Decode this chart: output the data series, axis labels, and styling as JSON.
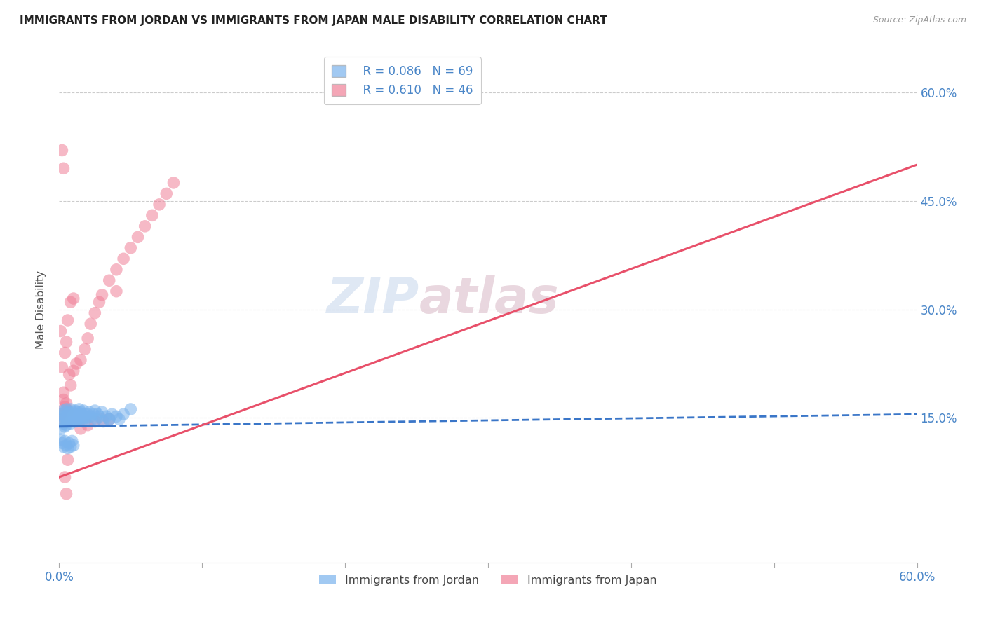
{
  "title": "IMMIGRANTS FROM JORDAN VS IMMIGRANTS FROM JAPAN MALE DISABILITY CORRELATION CHART",
  "source": "Source: ZipAtlas.com",
  "ylabel": "Male Disability",
  "legend_jordan_r": "R = 0.086",
  "legend_jordan_n": "N = 69",
  "legend_japan_r": "R = 0.610",
  "legend_japan_n": "N = 46",
  "color_jordan": "#7ab3ed",
  "color_japan": "#f08098",
  "color_trendline_jordan": "#3a76c8",
  "color_trendline_japan": "#e8506a",
  "watermark_zip": "ZIP",
  "watermark_atlas": "atlas",
  "jordan_scatter_x": [
    0.001,
    0.002,
    0.002,
    0.003,
    0.003,
    0.003,
    0.004,
    0.004,
    0.004,
    0.005,
    0.005,
    0.005,
    0.006,
    0.006,
    0.007,
    0.007,
    0.008,
    0.008,
    0.008,
    0.009,
    0.009,
    0.01,
    0.01,
    0.011,
    0.011,
    0.012,
    0.012,
    0.013,
    0.013,
    0.014,
    0.014,
    0.015,
    0.015,
    0.016,
    0.016,
    0.017,
    0.017,
    0.018,
    0.018,
    0.019,
    0.02,
    0.021,
    0.022,
    0.023,
    0.024,
    0.025,
    0.026,
    0.027,
    0.028,
    0.03,
    0.031,
    0.033,
    0.035,
    0.037,
    0.04,
    0.042,
    0.045,
    0.05,
    0.001,
    0.002,
    0.003,
    0.004,
    0.005,
    0.006,
    0.007,
    0.008,
    0.009,
    0.01,
    0.035
  ],
  "jordan_scatter_y": [
    0.135,
    0.155,
    0.148,
    0.16,
    0.152,
    0.142,
    0.158,
    0.148,
    0.138,
    0.162,
    0.15,
    0.14,
    0.155,
    0.145,
    0.158,
    0.148,
    0.162,
    0.152,
    0.142,
    0.158,
    0.148,
    0.155,
    0.145,
    0.16,
    0.15,
    0.155,
    0.145,
    0.158,
    0.148,
    0.162,
    0.152,
    0.158,
    0.148,
    0.155,
    0.145,
    0.16,
    0.15,
    0.155,
    0.145,
    0.15,
    0.155,
    0.158,
    0.152,
    0.148,
    0.155,
    0.16,
    0.148,
    0.155,
    0.152,
    0.158,
    0.145,
    0.152,
    0.148,
    0.155,
    0.152,
    0.148,
    0.155,
    0.162,
    0.12,
    0.115,
    0.11,
    0.118,
    0.112,
    0.108,
    0.115,
    0.11,
    0.118,
    0.112,
    0.148
  ],
  "japan_scatter_x": [
    0.001,
    0.002,
    0.003,
    0.004,
    0.005,
    0.006,
    0.007,
    0.008,
    0.01,
    0.012,
    0.015,
    0.018,
    0.02,
    0.022,
    0.025,
    0.028,
    0.03,
    0.035,
    0.04,
    0.045,
    0.05,
    0.055,
    0.06,
    0.065,
    0.07,
    0.075,
    0.08,
    0.001,
    0.002,
    0.003,
    0.004,
    0.005,
    0.006,
    0.008,
    0.01,
    0.015,
    0.02,
    0.025,
    0.03,
    0.035,
    0.04,
    0.002,
    0.003,
    0.004,
    0.005,
    0.006
  ],
  "japan_scatter_y": [
    0.155,
    0.148,
    0.175,
    0.165,
    0.17,
    0.16,
    0.21,
    0.195,
    0.215,
    0.225,
    0.23,
    0.245,
    0.26,
    0.28,
    0.295,
    0.31,
    0.32,
    0.34,
    0.355,
    0.37,
    0.385,
    0.4,
    0.415,
    0.43,
    0.445,
    0.46,
    0.475,
    0.27,
    0.22,
    0.185,
    0.24,
    0.255,
    0.285,
    0.31,
    0.315,
    0.135,
    0.14,
    0.145,
    0.148,
    0.148,
    0.325,
    0.52,
    0.495,
    0.068,
    0.045,
    0.092
  ],
  "xlim": [
    0.0,
    0.6
  ],
  "ylim": [
    -0.05,
    0.65
  ],
  "ytick_vals": [
    0.15,
    0.3,
    0.45,
    0.6
  ],
  "ytick_labels": [
    "15.0%",
    "30.0%",
    "45.0%",
    "60.0%"
  ],
  "xtick_vals": [
    0.0,
    0.1,
    0.2,
    0.3,
    0.4,
    0.5,
    0.6
  ],
  "jordan_trend_x": [
    0.0,
    0.6
  ],
  "jordan_trend_y": [
    0.138,
    0.155
  ],
  "japan_trend_x": [
    0.0,
    0.6
  ],
  "japan_trend_y": [
    0.068,
    0.5
  ]
}
